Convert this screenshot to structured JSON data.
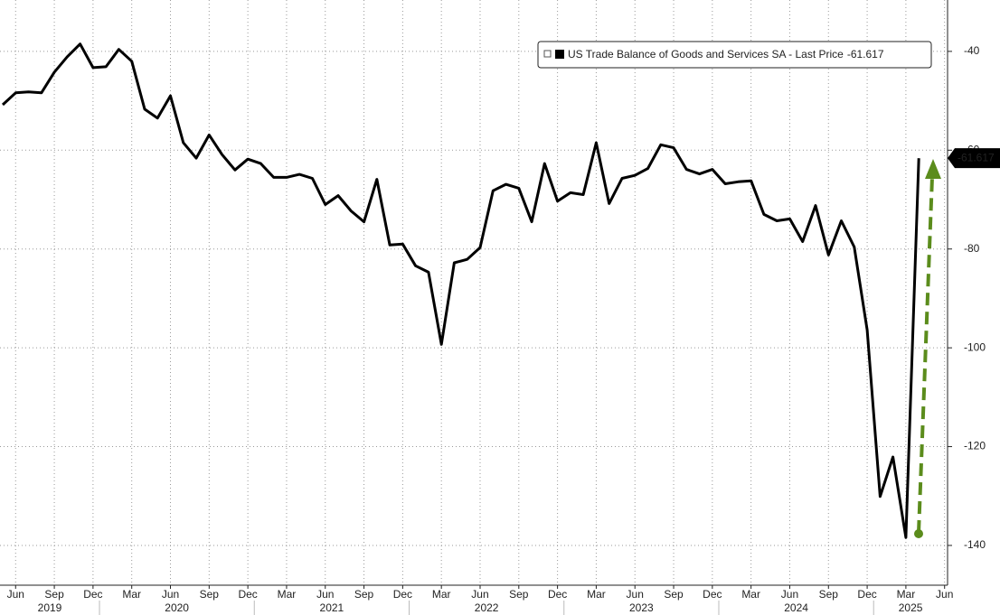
{
  "chart_data": {
    "type": "line",
    "legend_label": "US Trade Balance of Goods and Services SA - Last Price",
    "x": [
      "2019-05",
      "2019-06",
      "2019-07",
      "2019-08",
      "2019-09",
      "2019-10",
      "2019-11",
      "2019-12",
      "2020-01",
      "2020-02",
      "2020-03",
      "2020-04",
      "2020-05",
      "2020-06",
      "2020-07",
      "2020-08",
      "2020-09",
      "2020-10",
      "2020-11",
      "2020-12",
      "2021-01",
      "2021-02",
      "2021-03",
      "2021-04",
      "2021-05",
      "2021-06",
      "2021-07",
      "2021-08",
      "2021-09",
      "2021-10",
      "2021-11",
      "2021-12",
      "2022-01",
      "2022-02",
      "2022-03",
      "2022-04",
      "2022-05",
      "2022-06",
      "2022-07",
      "2022-08",
      "2022-09",
      "2022-10",
      "2022-11",
      "2022-12",
      "2023-01",
      "2023-02",
      "2023-03",
      "2023-04",
      "2023-05",
      "2023-06",
      "2023-07",
      "2023-08",
      "2023-09",
      "2023-10",
      "2023-11",
      "2023-12",
      "2024-01",
      "2024-02",
      "2024-03",
      "2024-04",
      "2024-05",
      "2024-06",
      "2024-07",
      "2024-08",
      "2024-09",
      "2024-10",
      "2024-11",
      "2024-12",
      "2025-01",
      "2025-02",
      "2025-03",
      "2025-04"
    ],
    "series": [
      {
        "name": "US Trade Balance of Goods and Services SA",
        "color": "#000000",
        "values": [
          -50.8,
          -48.4,
          -48.2,
          -48.4,
          -44.2,
          -41.1,
          -38.5,
          -43.3,
          -43.1,
          -39.6,
          -42.0,
          -51.7,
          -53.5,
          -49.0,
          -58.5,
          -61.6,
          -56.9,
          -60.9,
          -64.0,
          -61.8,
          -62.7,
          -65.5,
          -65.5,
          -64.9,
          -65.7,
          -71.0,
          -69.2,
          -72.3,
          -74.5,
          -65.9,
          -79.2,
          -79.0,
          -83.4,
          -84.7,
          -99.3,
          -82.8,
          -82.1,
          -79.7,
          -68.2,
          -66.9,
          -67.7,
          -74.5,
          -62.7,
          -70.3,
          -68.6,
          -69.0,
          -58.5,
          -70.8,
          -65.7,
          -65.1,
          -63.7,
          -58.9,
          -59.5,
          -63.9,
          -64.8,
          -63.9,
          -66.8,
          -66.4,
          -66.2,
          -73.0,
          -74.3,
          -73.9,
          -78.5,
          -71.2,
          -81.2,
          -74.3,
          -79.6,
          -96.4,
          -130.1,
          -122.1,
          -138.4,
          -61.617
        ]
      }
    ],
    "ylim": [
      -147.5,
      -29.6
    ],
    "yticks": [
      -140,
      -120,
      -100,
      -80,
      -60,
      -40
    ],
    "xticks": [
      {
        "value": "2019-06",
        "label": "Jun"
      },
      {
        "value": "2019-09",
        "label": "Sep"
      },
      {
        "value": "2019-12",
        "label": "Dec"
      },
      {
        "value": "2020-03",
        "label": "Mar"
      },
      {
        "value": "2020-06",
        "label": "Jun"
      },
      {
        "value": "2020-09",
        "label": "Sep"
      },
      {
        "value": "2020-12",
        "label": "Dec"
      },
      {
        "value": "2021-03",
        "label": "Mar"
      },
      {
        "value": "2021-06",
        "label": "Jun"
      },
      {
        "value": "2021-09",
        "label": "Sep"
      },
      {
        "value": "2021-12",
        "label": "Dec"
      },
      {
        "value": "2022-03",
        "label": "Mar"
      },
      {
        "value": "2022-06",
        "label": "Jun"
      },
      {
        "value": "2022-09",
        "label": "Sep"
      },
      {
        "value": "2022-12",
        "label": "Dec"
      },
      {
        "value": "2023-03",
        "label": "Mar"
      },
      {
        "value": "2023-06",
        "label": "Jun"
      },
      {
        "value": "2023-09",
        "label": "Sep"
      },
      {
        "value": "2023-12",
        "label": "Dec"
      },
      {
        "value": "2024-03",
        "label": "Mar"
      },
      {
        "value": "2024-06",
        "label": "Jun"
      },
      {
        "value": "2024-09",
        "label": "Sep"
      },
      {
        "value": "2024-12",
        "label": "Dec"
      },
      {
        "value": "2025-03",
        "label": "Mar"
      },
      {
        "value": "2025-06",
        "label": "Jun"
      }
    ],
    "years": [
      "2019",
      "2020",
      "2021",
      "2022",
      "2023",
      "2024",
      "2025"
    ],
    "grid": true
  }
}
